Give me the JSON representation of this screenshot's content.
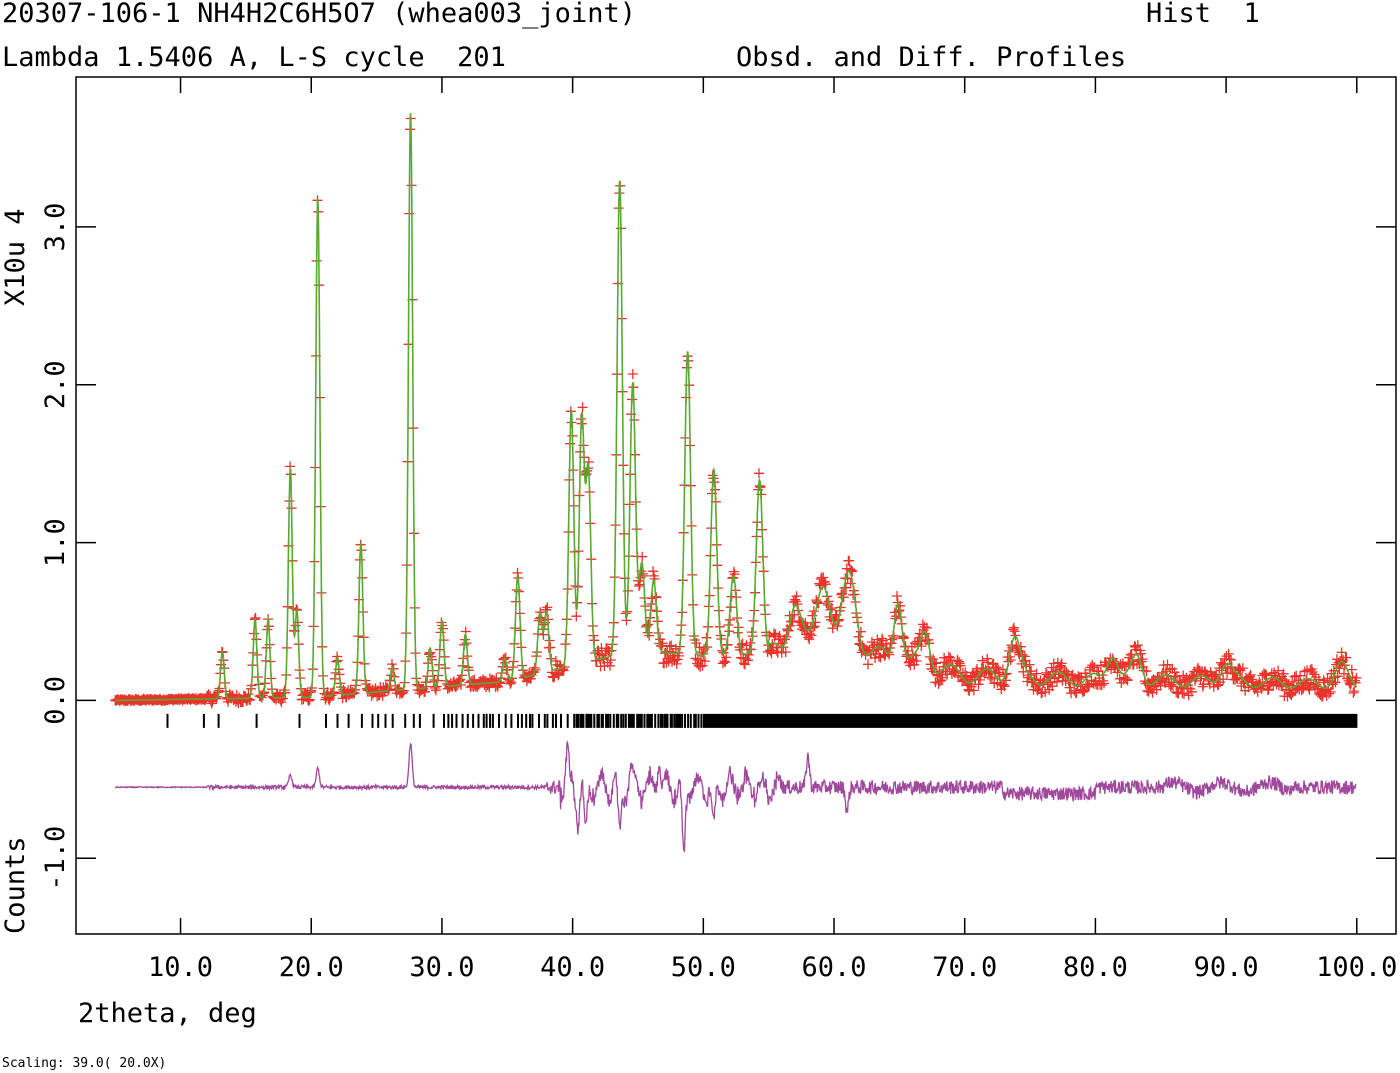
{
  "header": {
    "title_left": "20307-106-1 NH4H2C6H5O7 (whea003_joint)",
    "title_right": "Hist  1",
    "line2_left": "Lambda 1.5406 A, L-S cycle  201",
    "line2_right": "Obsd. and Diff. Profiles"
  },
  "footer": {
    "scaling": "Scaling: 39.0( 20.0X)"
  },
  "colors": {
    "observed": "#e8332a",
    "calculated": "#5aa832",
    "difference": "#a0489c",
    "reflections": "#000000",
    "axis": "#000000"
  },
  "chart_data": {
    "type": "line",
    "xlabel": "2theta, deg",
    "ylabel_top": "X10u 4",
    "ylabel_bottom": "Counts",
    "xlim": [
      2.0,
      103.0
    ],
    "ylim": [
      -1.48,
      3.95
    ],
    "x_ticks": [
      10,
      20,
      30,
      40,
      50,
      60,
      70,
      80,
      90,
      100
    ],
    "x_tick_labels": [
      "10.0",
      "20.0",
      "30.0",
      "40.0",
      "50.0",
      "60.0",
      "70.0",
      "80.0",
      "90.0",
      "100.0"
    ],
    "y_ticks": [
      -1.0,
      0.0,
      1.0,
      2.0,
      3.0
    ],
    "y_tick_labels": [
      "-1.0",
      "0.0",
      "1.0",
      "2.0",
      "3.0"
    ],
    "x_range": [
      5.0,
      100.0
    ],
    "background": [
      [
        5,
        0.0
      ],
      [
        20,
        0.02
      ],
      [
        35,
        0.12
      ],
      [
        40,
        0.22
      ],
      [
        45,
        0.32
      ],
      [
        50,
        0.28
      ],
      [
        55,
        0.3
      ],
      [
        60,
        0.36
      ],
      [
        65,
        0.26
      ],
      [
        70,
        0.16
      ],
      [
        80,
        0.13
      ],
      [
        90,
        0.12
      ],
      [
        100,
        0.1
      ]
    ],
    "peaks": [
      [
        13.2,
        0.3,
        0.14
      ],
      [
        15.7,
        0.5,
        0.14
      ],
      [
        16.7,
        0.5,
        0.14
      ],
      [
        18.4,
        1.45,
        0.15
      ],
      [
        18.9,
        0.55,
        0.14
      ],
      [
        20.5,
        3.15,
        0.16
      ],
      [
        22.0,
        0.24,
        0.14
      ],
      [
        23.8,
        0.95,
        0.15
      ],
      [
        26.2,
        0.15,
        0.14
      ],
      [
        27.6,
        3.65,
        0.16
      ],
      [
        29.1,
        0.25,
        0.14
      ],
      [
        30.0,
        0.42,
        0.15
      ],
      [
        31.8,
        0.32,
        0.15
      ],
      [
        34.8,
        0.15,
        0.16
      ],
      [
        35.8,
        0.66,
        0.17
      ],
      [
        37.5,
        0.38,
        0.17
      ],
      [
        38.0,
        0.38,
        0.17
      ],
      [
        39.9,
        1.62,
        0.19
      ],
      [
        40.7,
        1.55,
        0.19
      ],
      [
        41.2,
        1.2,
        0.19
      ],
      [
        43.6,
        3.0,
        0.2
      ],
      [
        44.6,
        1.7,
        0.21
      ],
      [
        45.3,
        0.55,
        0.21
      ],
      [
        46.2,
        0.45,
        0.21
      ],
      [
        48.8,
        1.92,
        0.22
      ],
      [
        50.8,
        1.18,
        0.23
      ],
      [
        52.3,
        0.5,
        0.25
      ],
      [
        54.3,
        1.1,
        0.25
      ],
      [
        57.0,
        0.32,
        0.45
      ],
      [
        59.2,
        0.42,
        0.5
      ],
      [
        61.2,
        0.45,
        0.5
      ],
      [
        64.9,
        0.4,
        0.3
      ],
      [
        67.0,
        0.22,
        0.35
      ],
      [
        73.8,
        0.25,
        0.4
      ],
      [
        81.3,
        0.18,
        0.4
      ],
      [
        83.2,
        0.15,
        0.4
      ],
      [
        90.0,
        0.12,
        0.45
      ],
      [
        98.8,
        0.12,
        0.45
      ]
    ],
    "noise_amplitude": 0.07,
    "diff_baseline": -0.55,
    "diff_spikes": [
      [
        20.5,
        0.12
      ],
      [
        27.6,
        0.28
      ],
      [
        18.4,
        0.08
      ],
      [
        39.6,
        0.22
      ],
      [
        40.4,
        -0.18
      ],
      [
        41.0,
        -0.3
      ],
      [
        43.6,
        -0.28
      ],
      [
        44.5,
        0.1
      ],
      [
        46.6,
        0.18
      ],
      [
        48.5,
        -0.45
      ],
      [
        50.8,
        -0.25
      ],
      [
        58.0,
        0.2
      ],
      [
        61.0,
        -0.15
      ]
    ],
    "reflection_row_y": -0.13,
    "reflection_start": 9.0
  }
}
